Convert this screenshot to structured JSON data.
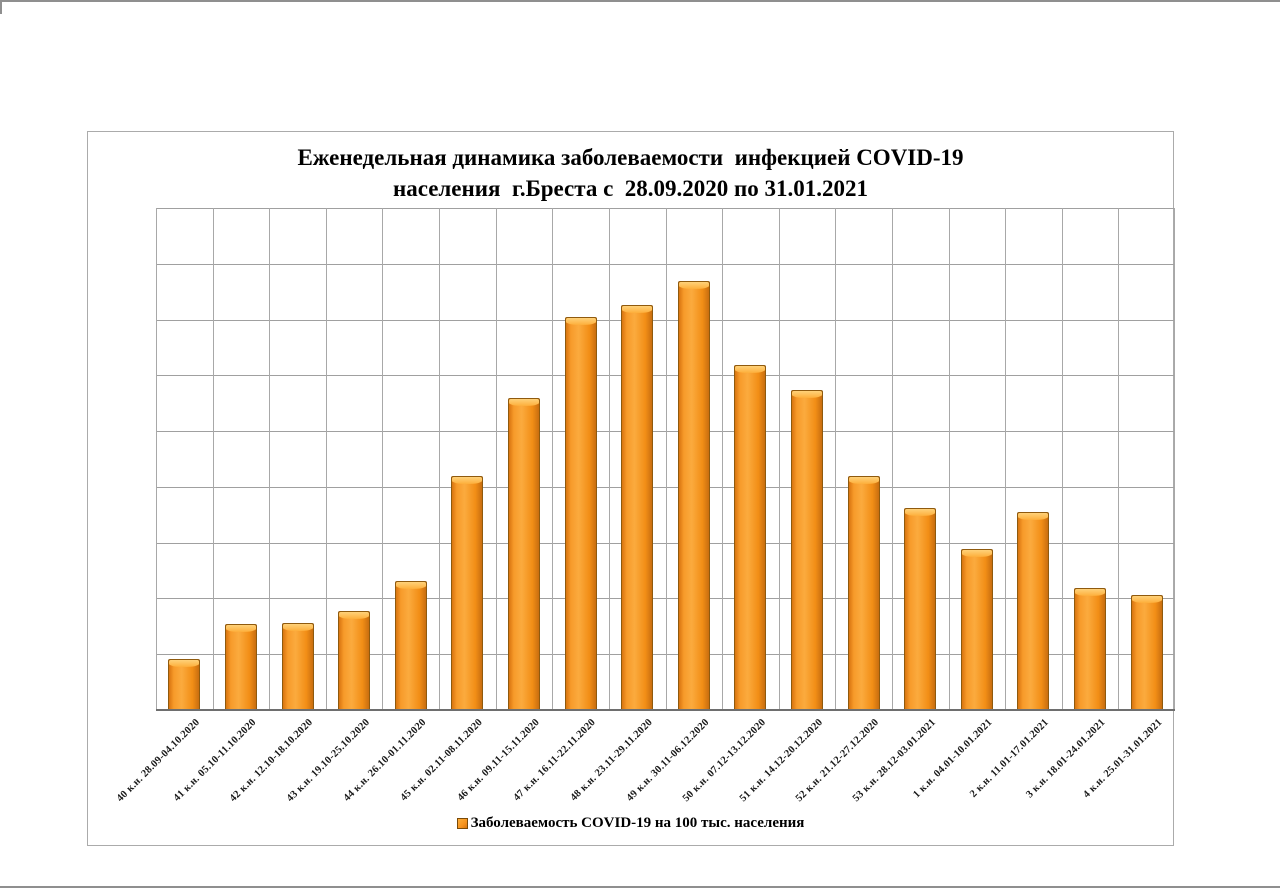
{
  "page": {
    "background": "#ffffff",
    "edge_line_color": "#8f8f8f"
  },
  "chart": {
    "title": {
      "line1": "Еженедельная динамика заболеваемости  инфекцией COVID-19",
      "line2": "населения  г.Бреста с  28.09.2020 по 31.01.2021"
    },
    "legend": {
      "label": "Заболеваемость COVID-19 на 100 тыс. населения",
      "swatch_color": "#F7941E"
    },
    "colors": {
      "bar_fill": "#F7941E",
      "bar_fill_light": "#FBAE3C",
      "bar_fill_dark": "#D9750F",
      "bar_border": "#8F5A0E",
      "gridline": "#A0A0A0",
      "axis_line": "#6E6E6E",
      "frame_border": "#ABABAB",
      "text": "#000000"
    }
  },
  "chart_data": {
    "type": "bar",
    "title": "Еженедельная динамика заболеваемости инфекцией COVID-19 населения г.Бреста с 28.09.2020 по 31.01.2021",
    "categories": [
      "40 к.н. 28.09-04.10.2020",
      "41 к.н. 05.10-11.10.2020",
      "42 к.н. 12.10-18.10.2020",
      "43 к.н. 19.10-25.10.2020",
      "44 к.н. 26.10-01.11.2020",
      "45 к.н. 02.11-08.11.2020",
      "46 к.н. 09.11-15.11.2020",
      "47 к.н. 16.11-22.11.2020",
      "48 к.н. 23.11-29.11.2020",
      "49 к.н. 30.11-06.12.2020",
      "50 к.н. 07.12-13.12.2020",
      "51 к.н. 14.12-20.12.2020",
      "52 к.н. 21.12-27.12.2020",
      "53 к.н. 28.12-03.01.2021",
      "1 к.н. 04.01-10.01.2021",
      "2 к.н. 11.01-17.01.2021",
      "3 к.н. 18.01-24.01.2021",
      "4 к.н. 25.01-31.01.2021"
    ],
    "values": [
      0.89,
      1.52,
      1.54,
      1.76,
      2.3,
      4.18,
      5.58,
      7.02,
      7.24,
      7.67,
      6.16,
      5.72,
      4.18,
      3.6,
      2.87,
      3.54,
      2.17,
      2.04
    ],
    "values_note": "y-axis has no tick labels in the image; values estimated in gridline units (1 unit = one horizontal gridline interval)",
    "ylim": [
      0,
      9
    ],
    "y_gridline_intervals": 9,
    "grid": true,
    "xlabel": "",
    "ylabel": "",
    "legend_entries": [
      "Заболеваемость COVID-19 на 100 тыс. населения"
    ],
    "legend_position": "bottom",
    "bar_color": "#F7941E"
  }
}
